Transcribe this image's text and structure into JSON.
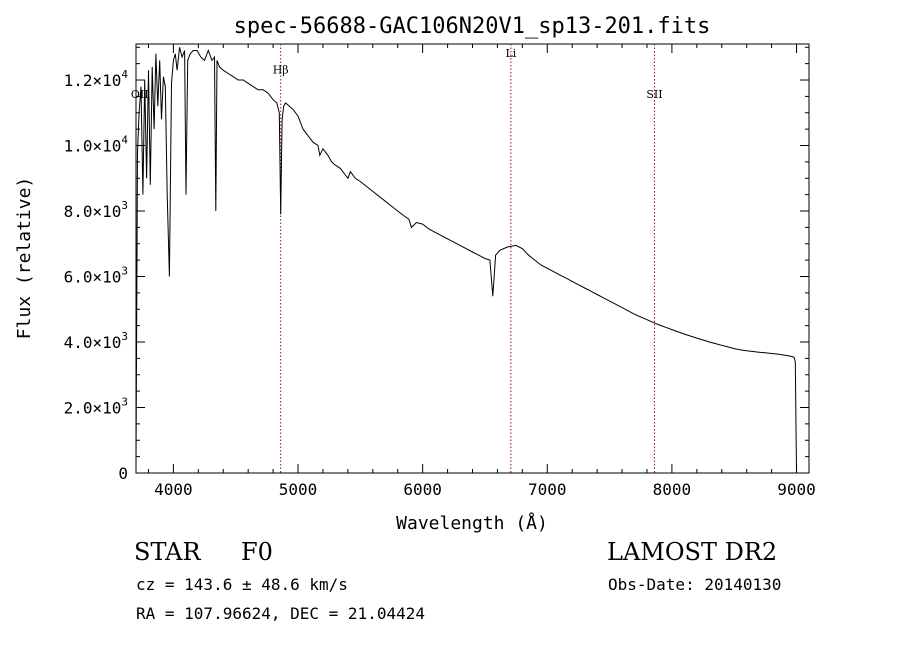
{
  "chart_data": {
    "type": "line",
    "title": "spec-56688-GAC106N20V1_sp13-201.fits",
    "xlabel": "Wavelength (Å)",
    "ylabel": "Flux (relative)",
    "xlim": [
      3700,
      9100
    ],
    "ylim": [
      0,
      13100
    ],
    "xticks": [
      {
        "value": 4000,
        "label": "4000"
      },
      {
        "value": 5000,
        "label": "5000"
      },
      {
        "value": 6000,
        "label": "6000"
      },
      {
        "value": 7000,
        "label": "7000"
      },
      {
        "value": 8000,
        "label": "8000"
      },
      {
        "value": 9000,
        "label": "9000"
      }
    ],
    "yticks": [
      {
        "value": 0,
        "mant": "0",
        "exp": ""
      },
      {
        "value": 2000,
        "mant": "2.0×10",
        "exp": "3"
      },
      {
        "value": 4000,
        "mant": "4.0×10",
        "exp": "3"
      },
      {
        "value": 6000,
        "mant": "6.0×10",
        "exp": "3"
      },
      {
        "value": 8000,
        "mant": "8.0×10",
        "exp": "3"
      },
      {
        "value": 10000,
        "mant": "1.0×10",
        "exp": "4"
      },
      {
        "value": 12000,
        "mant": "1.2×10",
        "exp": "4"
      }
    ],
    "grid": false,
    "line_color": "#000000",
    "marker_color": "#8b1a1a",
    "markers": [
      {
        "x": 4861,
        "label": "Hβ",
        "label_y": 12200
      },
      {
        "x": 6708,
        "label": "Li",
        "label_y": 12700
      },
      {
        "x": 7860,
        "label": "SII",
        "label_y": 11450
      }
    ],
    "side_label": {
      "text": "OII",
      "x": 3730,
      "y": 11450
    },
    "series": [
      {
        "x": [
          3700,
          3712,
          3725,
          3740,
          3755,
          3770,
          3785,
          3800,
          3815,
          3830,
          3845,
          3860,
          3875,
          3890,
          3905,
          3920,
          3935,
          3950,
          3968,
          3985,
          4000,
          4015,
          4030,
          4050,
          4070,
          4090,
          4101,
          4115,
          4135,
          4160,
          4190,
          4220,
          4250,
          4280,
          4310,
          4330,
          4340,
          4350,
          4370,
          4400,
          4440,
          4480,
          4520,
          4560,
          4600,
          4640,
          4680,
          4720,
          4760,
          4800,
          4830,
          4850,
          4861,
          4872,
          4885,
          4900,
          4930,
          4960,
          5000,
          5040,
          5080,
          5120,
          5160,
          5175,
          5200,
          5240,
          5270,
          5300,
          5340,
          5380,
          5400,
          5420,
          5460,
          5500,
          5550,
          5600,
          5650,
          5700,
          5750,
          5800,
          5850,
          5890,
          5910,
          5950,
          6000,
          6050,
          6100,
          6150,
          6200,
          6250,
          6300,
          6350,
          6400,
          6450,
          6500,
          6540,
          6563,
          6585,
          6620,
          6680,
          6750,
          6800,
          6850,
          6900,
          6950,
          7000,
          7050,
          7100,
          7150,
          7200,
          7250,
          7300,
          7350,
          7400,
          7450,
          7500,
          7550,
          7600,
          7650,
          7700,
          7750,
          7800,
          7850,
          7900,
          7950,
          8000,
          8050,
          8100,
          8150,
          8200,
          8250,
          8300,
          8350,
          8400,
          8450,
          8500,
          8550,
          8600,
          8650,
          8700,
          8750,
          8800,
          8850,
          8900,
          8950,
          8980,
          8990,
          9000
        ],
        "y": [
          200,
          9800,
          11000,
          11800,
          8500,
          12000,
          9000,
          12300,
          8800,
          12400,
          10500,
          12800,
          11200,
          12600,
          10800,
          12100,
          11800,
          8500,
          6000,
          11900,
          12600,
          12800,
          12300,
          13000,
          12700,
          12900,
          8500,
          12600,
          12800,
          12900,
          12900,
          12700,
          12600,
          12900,
          12600,
          12700,
          8000,
          12600,
          12400,
          12300,
          12200,
          12100,
          12000,
          12000,
          11900,
          11800,
          11700,
          11700,
          11600,
          11400,
          11300,
          11000,
          7900,
          10800,
          11200,
          11300,
          11200,
          11100,
          10900,
          10500,
          10300,
          10100,
          10000,
          9700,
          9900,
          9700,
          9500,
          9400,
          9300,
          9100,
          9000,
          9200,
          9000,
          8900,
          8750,
          8600,
          8450,
          8300,
          8150,
          8000,
          7850,
          7750,
          7500,
          7650,
          7600,
          7450,
          7350,
          7250,
          7150,
          7050,
          6950,
          6850,
          6750,
          6650,
          6550,
          6500,
          5400,
          6650,
          6800,
          6900,
          6950,
          6850,
          6650,
          6500,
          6350,
          6250,
          6150,
          6050,
          5950,
          5850,
          5750,
          5650,
          5550,
          5450,
          5350,
          5250,
          5150,
          5050,
          4950,
          4850,
          4760,
          4680,
          4600,
          4520,
          4450,
          4380,
          4310,
          4240,
          4180,
          4120,
          4060,
          4000,
          3950,
          3900,
          3850,
          3800,
          3760,
          3730,
          3710,
          3690,
          3670,
          3650,
          3630,
          3600,
          3570,
          3540,
          3400,
          0
        ]
      }
    ]
  },
  "info": {
    "objtype": "STAR",
    "subclass": "F0",
    "survey": "LAMOST DR2",
    "redshift_line": "cz = 143.6 ± 48.6 km/s",
    "obsdate_line": "Obs-Date: 20140130",
    "coords_line": "RA = 107.96624, DEC =  21.04424"
  }
}
